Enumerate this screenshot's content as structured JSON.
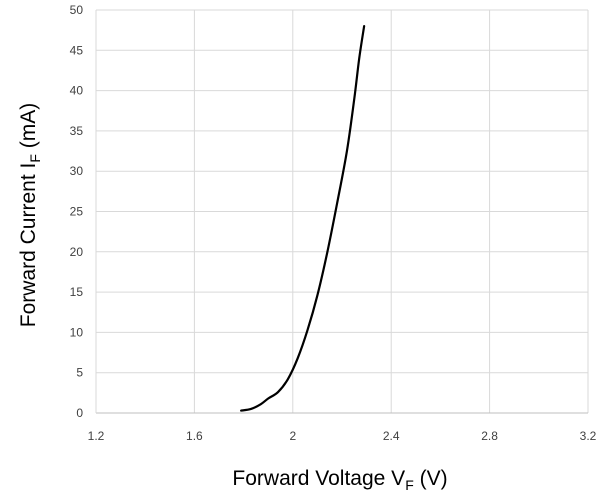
{
  "chart_data": {
    "type": "line",
    "xlabel": {
      "main": "Forward Voltage V",
      "sub": "F",
      "unit": " (V)"
    },
    "ylabel": {
      "main": "Forward Current I",
      "sub": "F",
      "unit": " (mA)"
    },
    "xlim": [
      1.2,
      3.2
    ],
    "ylim": [
      0,
      50
    ],
    "x_ticks": [
      "1.2",
      "1.6",
      "2",
      "2.4",
      "2.8",
      "3.2"
    ],
    "y_ticks": [
      "0",
      "5",
      "10",
      "15",
      "20",
      "25",
      "30",
      "35",
      "40",
      "45",
      "50"
    ],
    "grid": true,
    "series": [
      {
        "x": [
          1.79,
          1.83,
          1.87,
          1.9,
          1.94,
          1.98,
          2.02,
          2.06,
          2.1,
          2.14,
          2.18,
          2.22,
          2.25,
          2.27,
          2.29
        ],
        "y": [
          0.3,
          0.5,
          1.1,
          1.8,
          2.6,
          4.2,
          6.8,
          10.3,
          14.6,
          19.9,
          26.0,
          32.5,
          39.0,
          44.0,
          48.0
        ]
      }
    ],
    "colors": {
      "line": "#000000",
      "grid": "#d9d9d9",
      "axis": "#bfbfbf"
    }
  }
}
